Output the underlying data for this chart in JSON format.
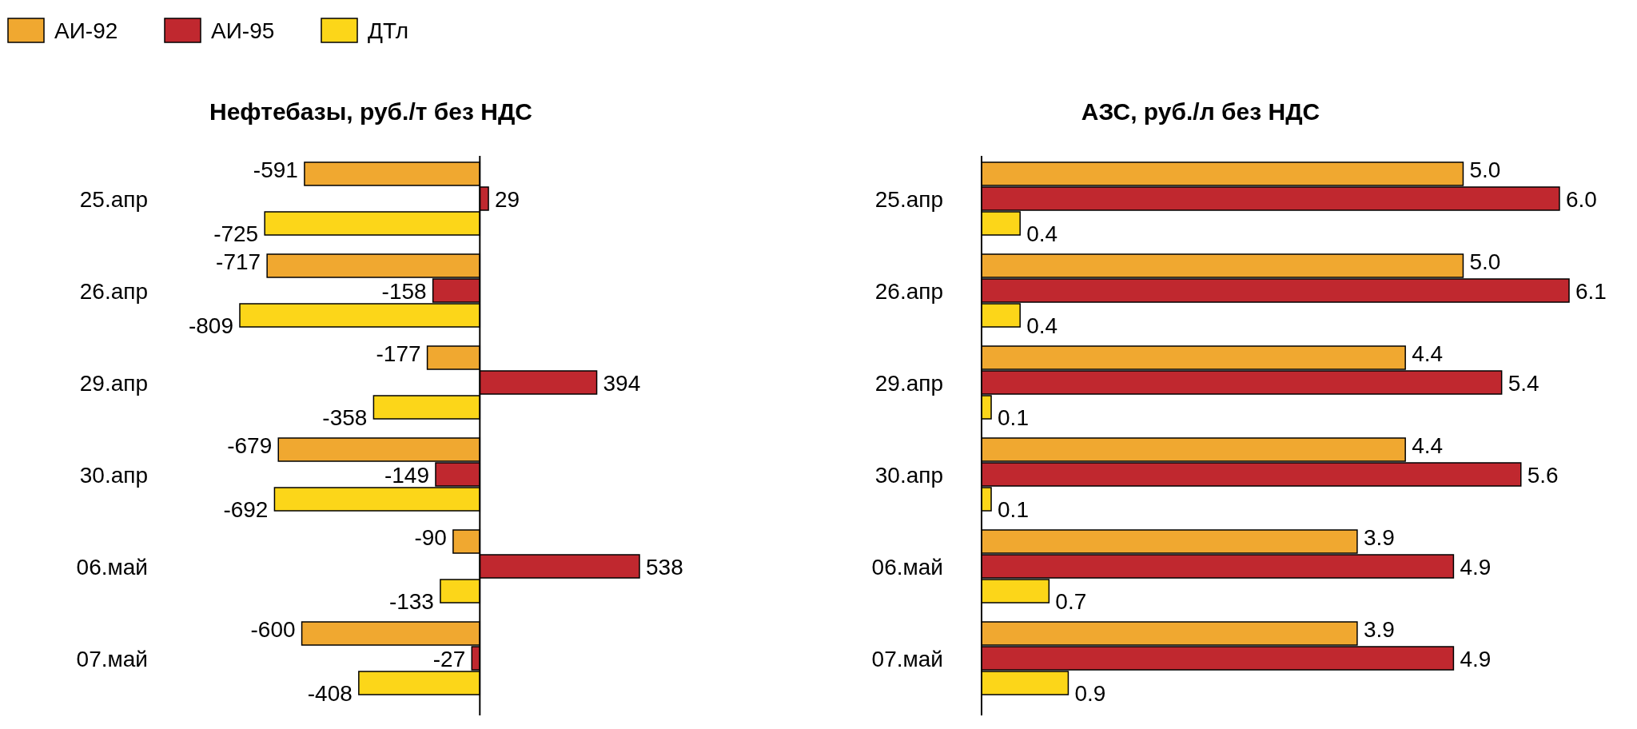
{
  "chart_data": [
    {
      "type": "bar",
      "orientation": "horizontal",
      "title": "Нефтебазы, руб./т без НДС",
      "categories": [
        "25.апр",
        "26.апр",
        "29.апр",
        "30.апр",
        "06.май",
        "07.май"
      ],
      "legend": "top left",
      "data_labels": true,
      "series": [
        {
          "name": "АИ-92",
          "color": "#f0a830",
          "values": [
            -591,
            -717,
            -177,
            -679,
            -90,
            -600
          ]
        },
        {
          "name": "АИ-95",
          "color": "#c0282f",
          "values": [
            29,
            -158,
            394,
            -149,
            538,
            -27
          ]
        },
        {
          "name": "ДТл",
          "color": "#fcd619",
          "values": [
            -725,
            -809,
            -358,
            -692,
            -133,
            -408
          ]
        }
      ]
    },
    {
      "type": "bar",
      "orientation": "horizontal",
      "title": "АЗС, руб./л без НДС",
      "categories": [
        "25.апр",
        "26.апр",
        "29.апр",
        "30.апр",
        "06.май",
        "07.май"
      ],
      "legend": false,
      "series": [
        {
          "color": "#f0a830",
          "values": [
            5.0,
            5.0,
            4.4,
            4.4,
            3.9,
            3.9
          ],
          "value_labels": [
            "5.0",
            "5.0",
            "4.4",
            "4.4",
            "3.9",
            "3.9"
          ]
        },
        {
          "color": "#c0282f",
          "values": [
            6.0,
            6.1,
            5.4,
            5.6,
            4.9,
            4.9
          ],
          "value_labels": [
            "6.0",
            "6.1",
            "5.4",
            "5.6",
            "4.9",
            "4.9"
          ]
        },
        {
          "color": "#fcd619",
          "values": [
            0.4,
            0.4,
            0.1,
            0.1,
            0.7,
            0.9
          ],
          "value_labels": [
            "0.4",
            "0.4",
            "0.1",
            "0.1",
            "0.7",
            "0.9"
          ]
        }
      ]
    }
  ]
}
